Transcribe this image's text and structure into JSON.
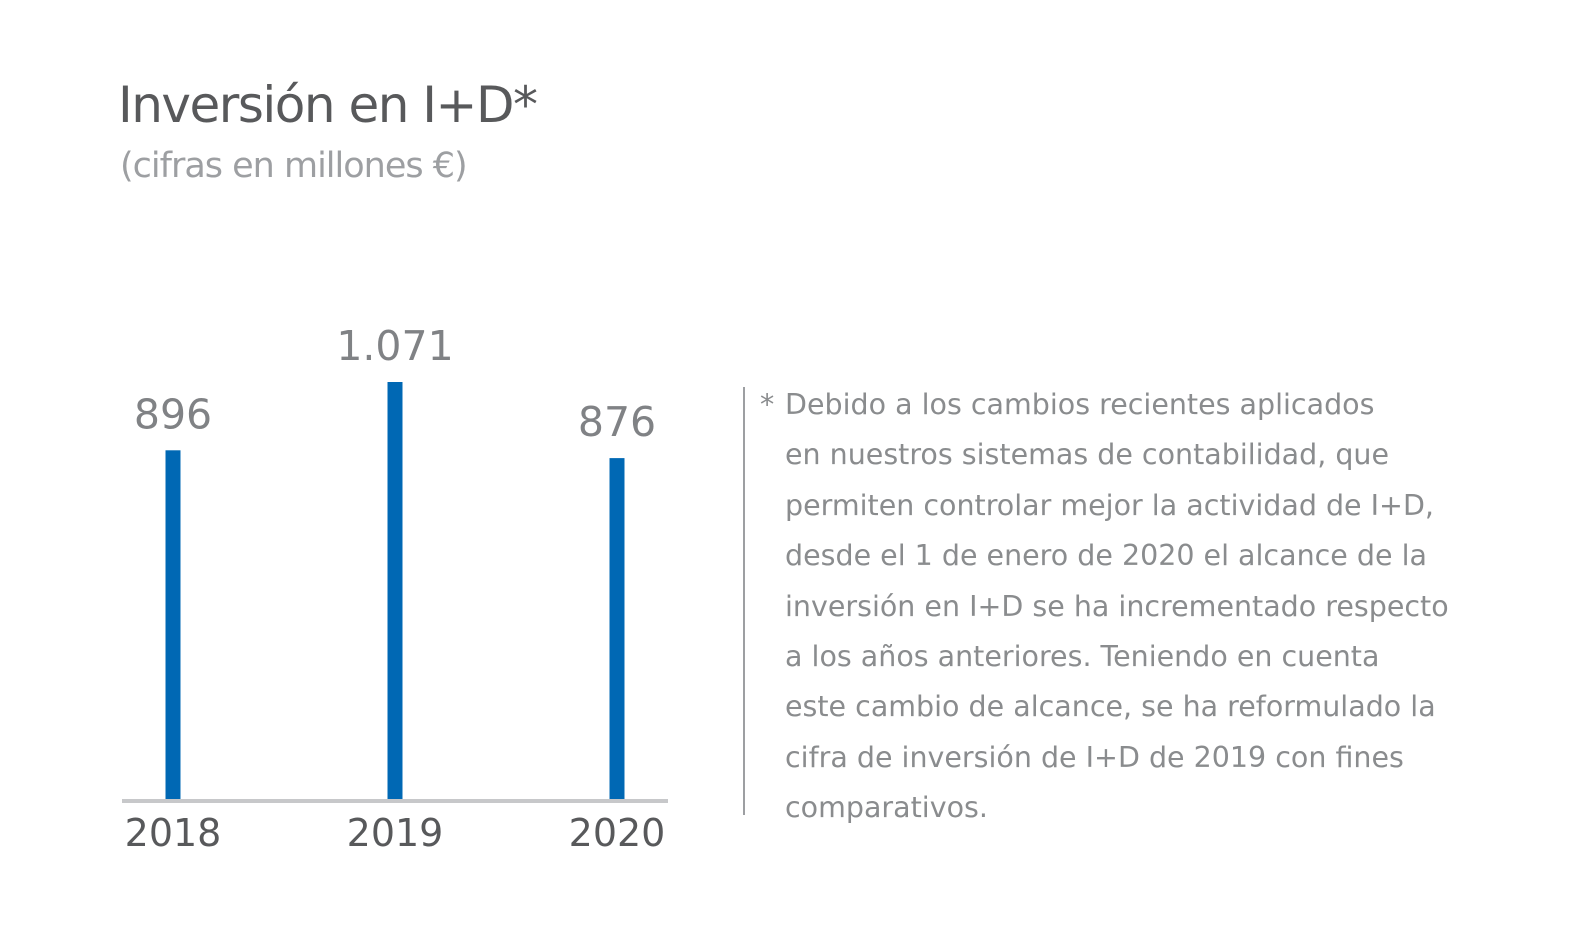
{
  "title": "Inversión en I+D*",
  "subtitle": "(cifras en millones €)",
  "chart_data": {
    "type": "bar",
    "title": "Inversión en I+D*",
    "subtitle": "(cifras en millones €)",
    "categories": [
      "2018",
      "2019",
      "2020"
    ],
    "values": [
      896,
      1071,
      876
    ],
    "value_labels": [
      "896",
      "1.071",
      "876"
    ],
    "ylim": [
      0,
      1071
    ],
    "grid": false,
    "colors": {
      "bar": "#0068b4",
      "axis": "#c7c8ca",
      "value_label": "#808285",
      "category_label": "#58595b"
    }
  },
  "footnote": {
    "marker": "*",
    "lines": [
      "Debido a los cambios recientes aplicados",
      "en nuestros sistemas de contabilidad, que",
      "permiten controlar mejor la actividad de I+D,",
      "desde el 1 de enero de 2020 el alcance de la",
      "inversión en I+D se ha incrementado respecto",
      "a los años anteriores. Teniendo en cuenta",
      "este cambio de alcance, se ha reformulado la",
      "cifra de inversión de I+D de 2019 con fines",
      "comparativos."
    ]
  }
}
